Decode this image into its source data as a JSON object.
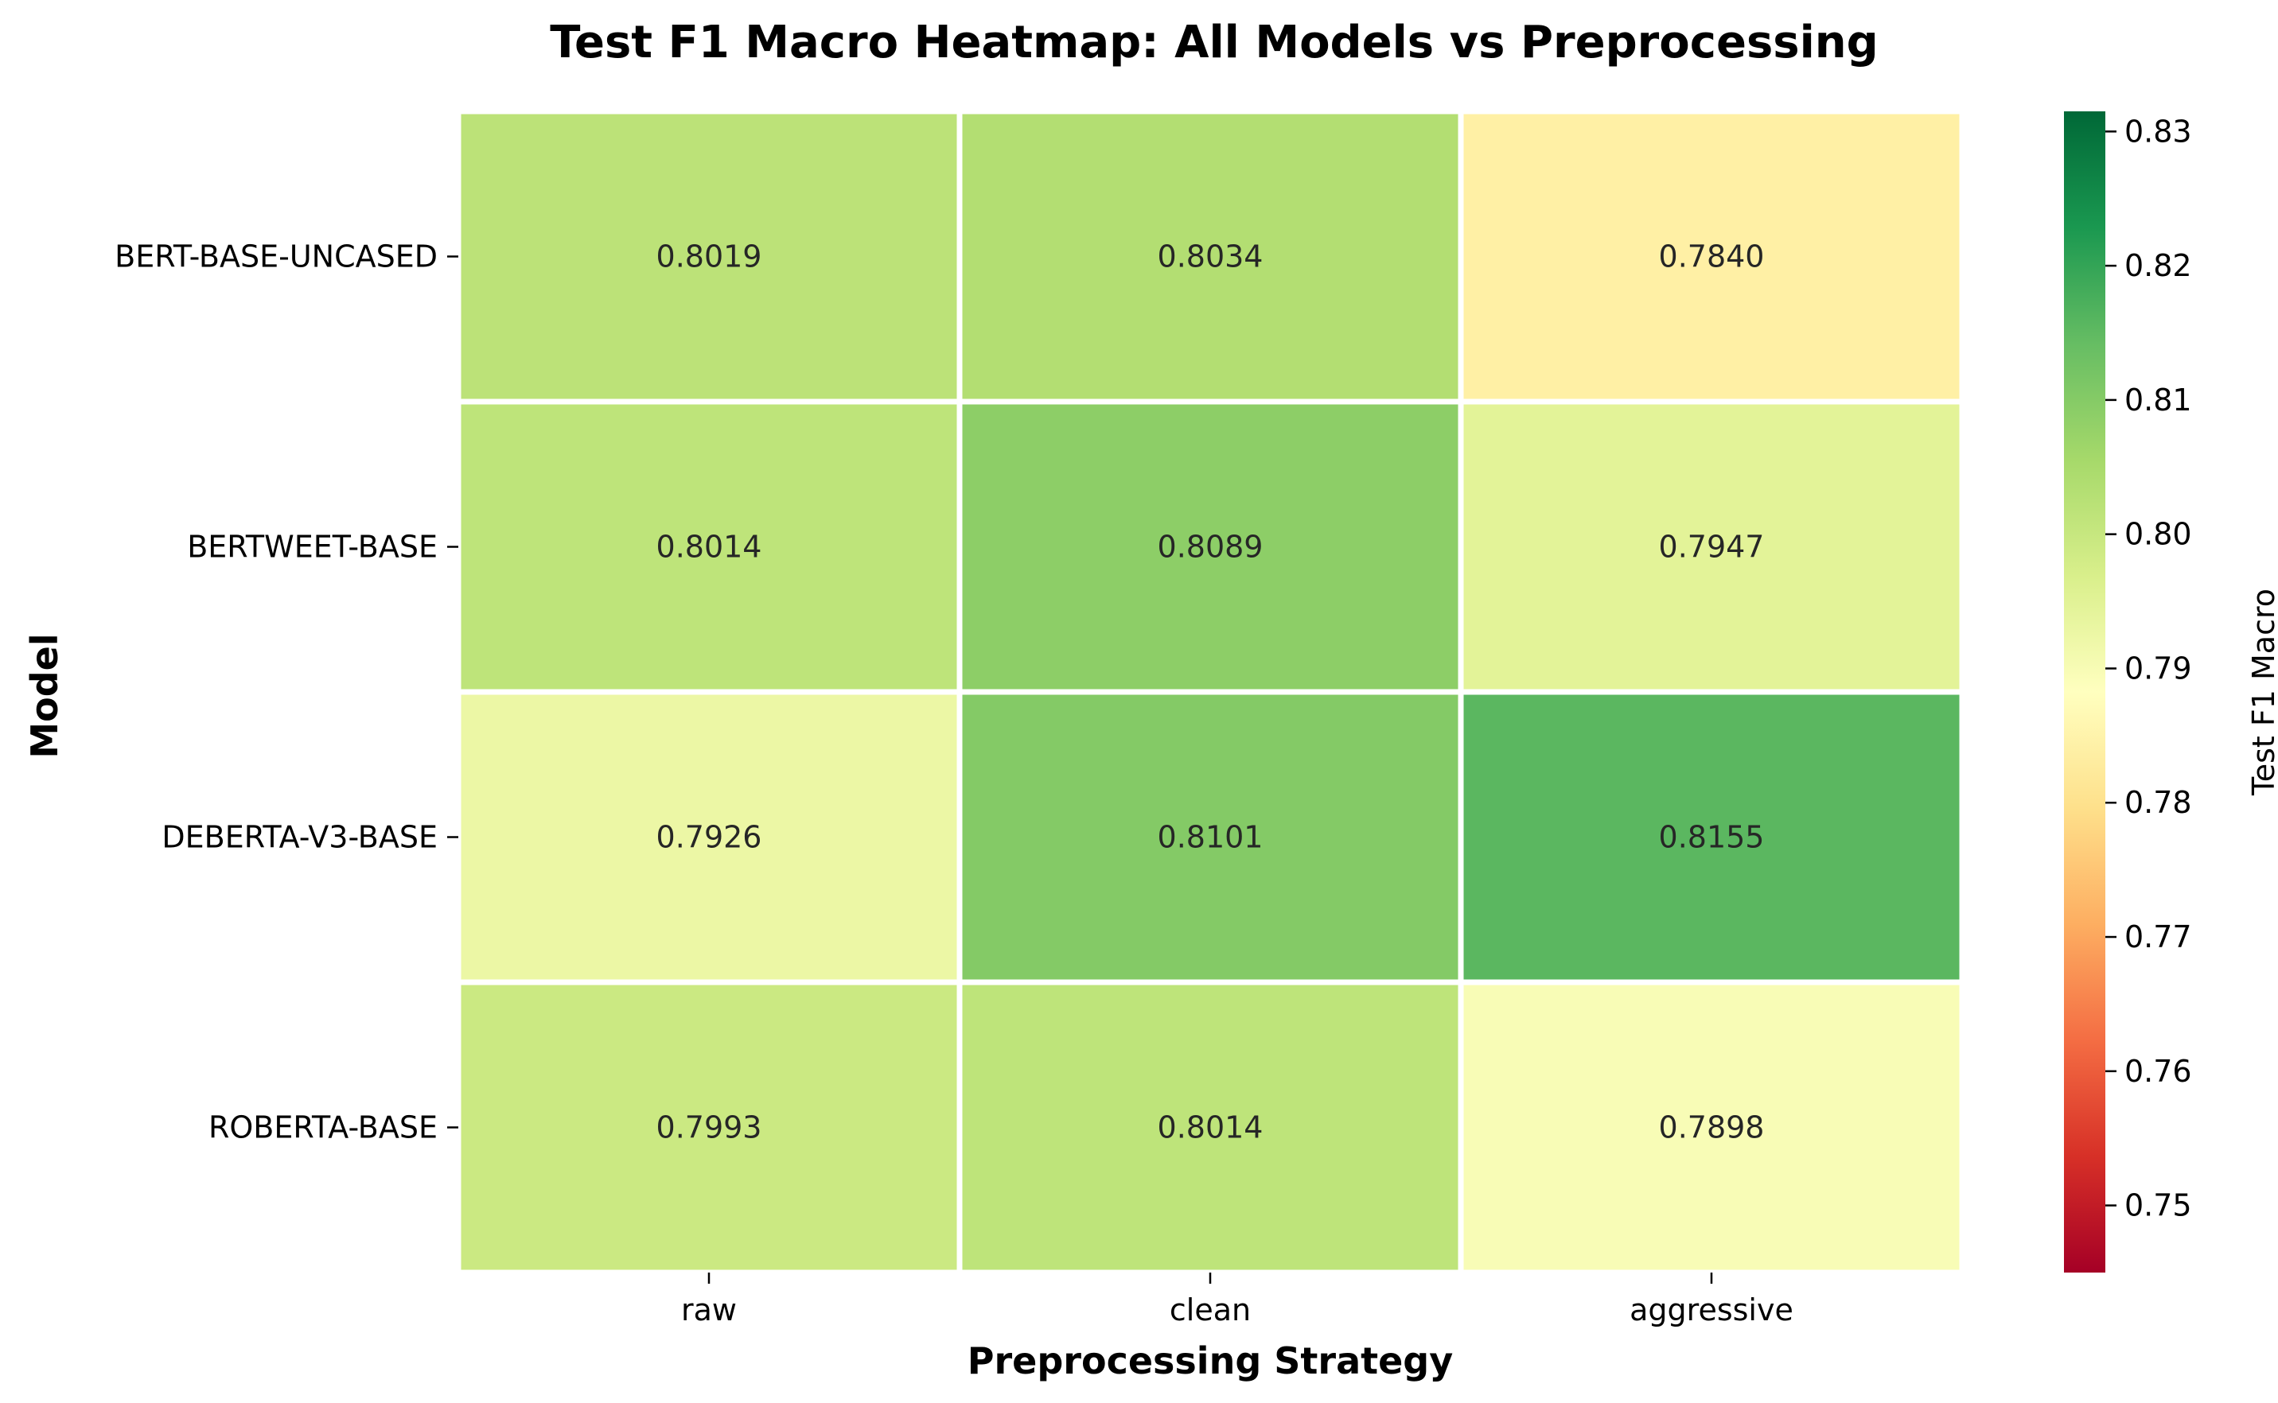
{
  "chart_data": {
    "type": "heatmap",
    "title": "Test F1 Macro Heatmap: All Models vs Preprocessing",
    "xlabel": "Preprocessing Strategy",
    "ylabel": "Model",
    "x_categories": [
      "raw",
      "clean",
      "aggressive"
    ],
    "y_categories": [
      "BERT-BASE-UNCASED",
      "BERTWEET-BASE",
      "DEBERTA-V3-BASE",
      "ROBERTA-BASE"
    ],
    "values": [
      [
        0.8019,
        0.8034,
        0.784
      ],
      [
        0.8014,
        0.8089,
        0.7947
      ],
      [
        0.7926,
        0.8101,
        0.8155
      ],
      [
        0.7993,
        0.8014,
        0.7898
      ]
    ],
    "value_labels": [
      [
        "0.8019",
        "0.8034",
        "0.7840"
      ],
      [
        "0.8014",
        "0.8089",
        "0.7947"
      ],
      [
        "0.7926",
        "0.8101",
        "0.8155"
      ],
      [
        "0.7993",
        "0.8014",
        "0.7898"
      ]
    ],
    "colormap": "RdYlGn",
    "vmin": 0.745,
    "vmax": 0.8315,
    "colorbar": {
      "label": "Test F1 Macro",
      "ticks": [
        0.75,
        0.76,
        0.77,
        0.78,
        0.79,
        0.8,
        0.81,
        0.82,
        0.83
      ],
      "tick_labels": [
        "0.75",
        "0.76",
        "0.77",
        "0.78",
        "0.79",
        "0.80",
        "0.81",
        "0.82",
        "0.83"
      ]
    },
    "grid": false,
    "cell_border_color": "#ffffff"
  }
}
